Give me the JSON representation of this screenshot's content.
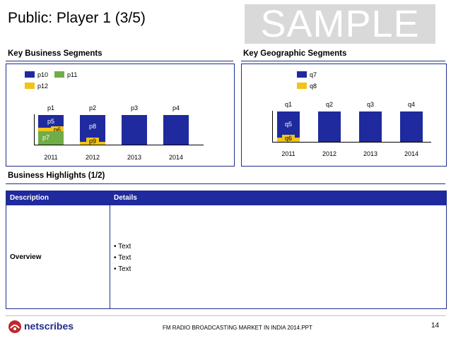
{
  "slide": {
    "title": "Public: Player 1 (3/5)",
    "watermark": "SAMPLE",
    "page_number": "14",
    "footer_text": "FM RADIO BROADCASTING MARKET IN INDIA 2014.PPT",
    "logo_text": "netscribes"
  },
  "colors": {
    "navy": "#1f2a9e",
    "green": "#70ad47",
    "yellow": "#f0c419",
    "accent": "#1f2d8a"
  },
  "business": {
    "heading": "Key Business Segments",
    "legend": [
      "p10",
      "p11",
      "p12"
    ],
    "top_labels": [
      "p1",
      "p2",
      "p3",
      "p4"
    ],
    "years": [
      "2011",
      "2012",
      "2013",
      "2014"
    ],
    "seg_labels": {
      "p5": "p5",
      "p6": "p6",
      "p7": "p7",
      "p8": "p8",
      "p9": "p9"
    }
  },
  "geo": {
    "heading": "Key Geographic Segments",
    "legend": [
      "q7",
      "q8"
    ],
    "top_labels": [
      "q1",
      "q2",
      "q3",
      "q4"
    ],
    "years": [
      "2011",
      "2012",
      "2013",
      "2014"
    ],
    "seg_labels": {
      "q5": "q5",
      "q6": "q6"
    }
  },
  "highlights": {
    "heading": "Business Highlights (1/2)",
    "col_description": "Description",
    "col_details": "Details",
    "row_label": "Overview",
    "bullets": [
      "• Text",
      "• Text",
      "• Text"
    ]
  }
}
